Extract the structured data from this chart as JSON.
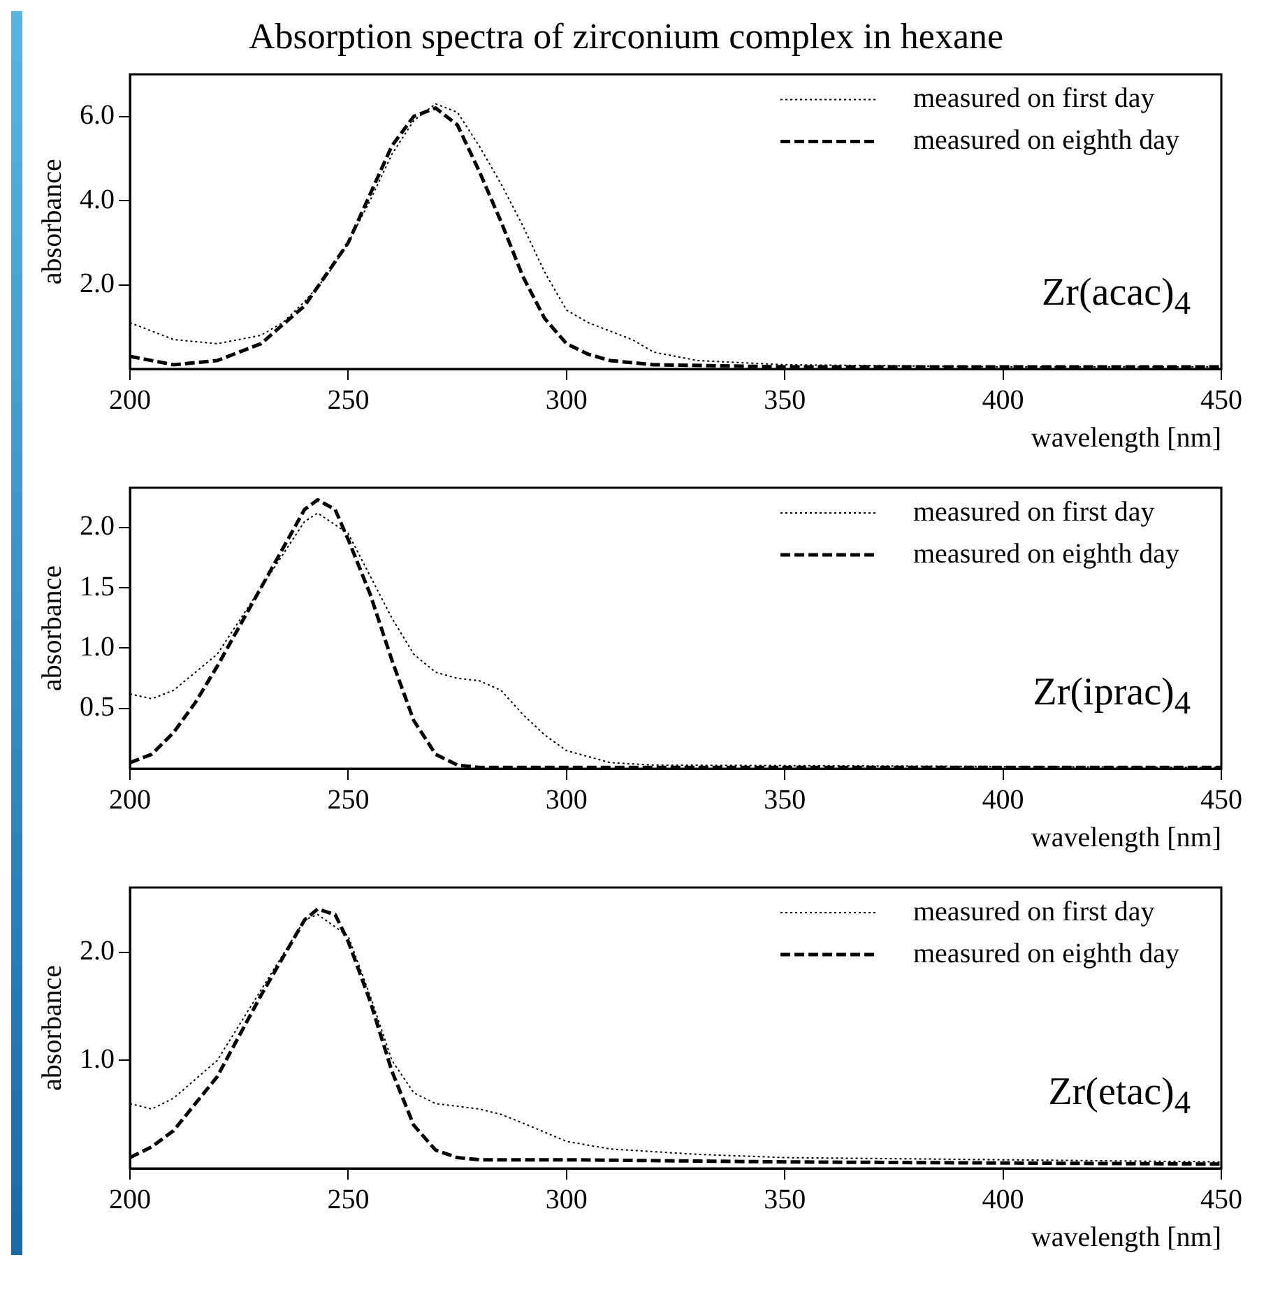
{
  "chart_data": [
    {
      "type": "line",
      "title": "Absorption spectra of zirconium complex in hexane",
      "xlabel": "wavelength [nm]",
      "ylabel": "absorbance",
      "xlim": [
        200,
        450
      ],
      "xticks": [
        200,
        250,
        300,
        350,
        400,
        450
      ],
      "ylim": [
        0,
        7
      ],
      "yticks": [
        {
          "value": 2,
          "label": "2.0"
        },
        {
          "value": 4,
          "label": "4.0"
        },
        {
          "value": 6,
          "label": "6.0"
        }
      ],
      "grid": false,
      "legend": "top right",
      "annotations": [
        "Zr(acac)$_{4}$"
      ],
      "series": [
        {
          "name": "measured on first day",
          "color": "#000000",
          "line_style": "dotted",
          "x": [
            200,
            205,
            210,
            220,
            230,
            235,
            240,
            245,
            250,
            255,
            260,
            265,
            270,
            275,
            280,
            285,
            290,
            295,
            300,
            305,
            310,
            315,
            320,
            330,
            350,
            400,
            450
          ],
          "values": [
            1.1,
            0.9,
            0.7,
            0.6,
            0.8,
            1.1,
            1.6,
            2.2,
            3.0,
            4.0,
            5.1,
            5.9,
            6.3,
            6.1,
            5.3,
            4.4,
            3.4,
            2.3,
            1.4,
            1.1,
            0.9,
            0.7,
            0.4,
            0.2,
            0.1,
            0.05,
            0.05
          ]
        },
        {
          "name": "measured on eighth day",
          "color": "#000000",
          "line_style": "dashed",
          "x": [
            200,
            210,
            220,
            230,
            240,
            250,
            260,
            265,
            270,
            275,
            280,
            285,
            290,
            295,
            300,
            305,
            310,
            320,
            350,
            400,
            450
          ],
          "values": [
            0.3,
            0.1,
            0.2,
            0.6,
            1.5,
            3.0,
            5.3,
            6.0,
            6.2,
            5.8,
            4.7,
            3.5,
            2.2,
            1.2,
            0.6,
            0.35,
            0.2,
            0.1,
            0.05,
            0.05,
            0.05
          ]
        }
      ]
    },
    {
      "type": "line",
      "xlabel": "wavelength [nm]",
      "ylabel": "absorbance",
      "xlim": [
        200,
        450
      ],
      "xticks": [
        200,
        250,
        300,
        350,
        400,
        450
      ],
      "ylim": [
        0,
        2.33
      ],
      "yticks": [
        0.5,
        {
          "value": 1,
          "label": "1.0"
        },
        1.5,
        {
          "value": 2,
          "label": "2.0"
        }
      ],
      "grid": false,
      "legend": "top right",
      "annotations": [
        "Zr(iprac)$_{4}$"
      ],
      "series": [
        {
          "name": "measured on first day",
          "color": "#000000",
          "line_style": "dotted",
          "x": [
            200,
            205,
            210,
            220,
            230,
            240,
            243,
            250,
            255,
            260,
            265,
            270,
            275,
            280,
            285,
            290,
            295,
            300,
            310,
            320,
            450
          ],
          "values": [
            0.62,
            0.58,
            0.65,
            0.95,
            1.5,
            2.05,
            2.12,
            1.95,
            1.6,
            1.25,
            0.95,
            0.8,
            0.75,
            0.73,
            0.65,
            0.45,
            0.28,
            0.15,
            0.05,
            0.03,
            0.01
          ]
        },
        {
          "name": "measured on eighth day",
          "color": "#000000",
          "line_style": "dashed",
          "x": [
            200,
            205,
            210,
            215,
            220,
            230,
            240,
            243,
            247,
            250,
            255,
            260,
            265,
            270,
            275,
            280,
            300,
            450
          ],
          "values": [
            0.05,
            0.12,
            0.3,
            0.55,
            0.85,
            1.5,
            2.15,
            2.23,
            2.15,
            1.9,
            1.45,
            0.9,
            0.4,
            0.12,
            0.03,
            0.01,
            0.01,
            0.01
          ]
        }
      ]
    },
    {
      "type": "line",
      "xlabel": "wavelength [nm]",
      "ylabel": "absorbance",
      "xlim": [
        200,
        450
      ],
      "xticks": [
        200,
        250,
        300,
        350,
        400,
        450
      ],
      "ylim": [
        0,
        2.6
      ],
      "yticks": [
        {
          "value": 1,
          "label": "1.0"
        },
        {
          "value": 2,
          "label": "2.0"
        }
      ],
      "grid": false,
      "legend": "top right",
      "annotations": [
        "Zr(etac)$_{4}$"
      ],
      "series": [
        {
          "name": "measured on first day",
          "color": "#000000",
          "line_style": "dotted",
          "x": [
            200,
            205,
            210,
            220,
            230,
            240,
            243,
            250,
            255,
            260,
            265,
            270,
            280,
            285,
            290,
            300,
            310,
            330,
            350,
            400,
            450
          ],
          "values": [
            0.6,
            0.55,
            0.65,
            1.0,
            1.65,
            2.3,
            2.35,
            2.15,
            1.6,
            1.0,
            0.7,
            0.6,
            0.55,
            0.5,
            0.42,
            0.25,
            0.18,
            0.13,
            0.1,
            0.08,
            0.06
          ]
        },
        {
          "name": "measured on eighth day",
          "color": "#000000",
          "line_style": "dashed",
          "x": [
            200,
            205,
            210,
            220,
            230,
            240,
            243,
            247,
            250,
            255,
            260,
            265,
            270,
            275,
            280,
            300,
            350,
            400,
            450
          ],
          "values": [
            0.1,
            0.2,
            0.35,
            0.85,
            1.6,
            2.3,
            2.4,
            2.35,
            2.1,
            1.55,
            0.9,
            0.4,
            0.17,
            0.1,
            0.08,
            0.08,
            0.06,
            0.05,
            0.04
          ]
        }
      ]
    }
  ]
}
